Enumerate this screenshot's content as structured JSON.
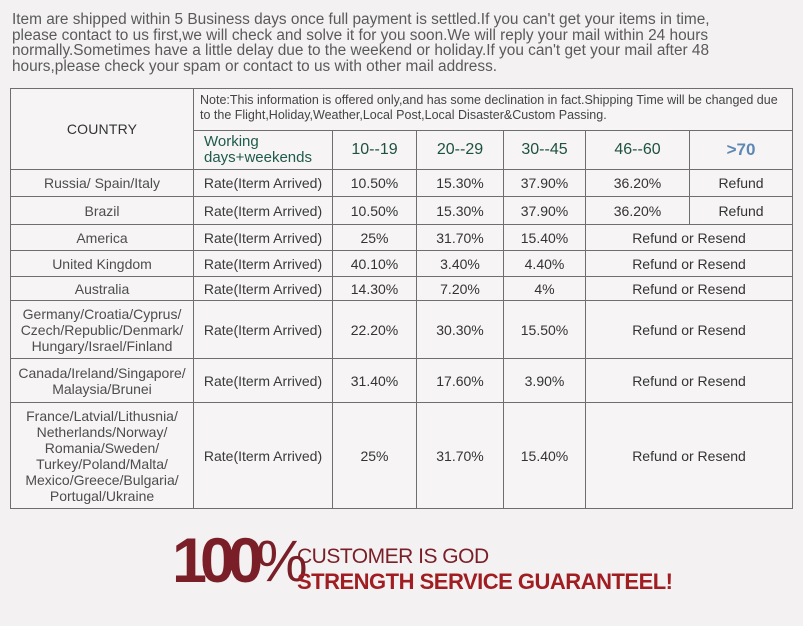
{
  "notice": {
    "line1": "Item are shipped within 5 Business days once full payment is settled.If you can't get your items in time,",
    "line2": "please contact to us first,we will check and solve it for you soon.We will reply your mail within 24 hours",
    "line3": "normally.Sometimes have a little delay due to the weekend or holiday.If you can't get your mail after 48",
    "line4": "hours,please check your spam or contact to us with other mail address."
  },
  "table": {
    "country_header": "COUNTRY",
    "note": "Note:This information is offered only,and has some declination in fact.Shipping Time will be changed due to the Flight,Holiday,Weather,Local Post,Local Disaster&Custom Passing.",
    "working_days_line1": "Working",
    "working_days_line2": "days+weekends",
    "day_ranges": [
      "10--19",
      "20--29",
      "30--45",
      "46--60",
      ">70"
    ],
    "rows": [
      {
        "country": "Russia/ Spain/Italy",
        "rate": "Rate(Iterm Arrived)",
        "v1": "10.50%",
        "v2": "15.30%",
        "v3": "37.90%",
        "v4": "36.20%",
        "v5": "Refund"
      },
      {
        "country": "Brazil",
        "rate": "Rate(Iterm Arrived)",
        "v1": "10.50%",
        "v2": "15.30%",
        "v3": "37.90%",
        "v4": "36.20%",
        "v5": "Refund"
      },
      {
        "country": "America",
        "rate": "Rate(Iterm Arrived)",
        "v1": "25%",
        "v2": "31.70%",
        "v3": "15.40%",
        "merged": "Refund or Resend"
      },
      {
        "country": "United Kingdom",
        "rate": "Rate(Iterm Arrived)",
        "v1": "40.10%",
        "v2": "3.40%",
        "v3": "4.40%",
        "merged": "Refund or Resend"
      },
      {
        "country": "Australia",
        "rate": "Rate(Iterm Arrived)",
        "v1": "14.30%",
        "v2": "7.20%",
        "v3": "4%",
        "merged": "Refund or Resend"
      },
      {
        "country_lines": [
          "Germany/Croatia/Cyprus/",
          "Czech/Republic/Denmark/",
          "Hungary/Israel/Finland"
        ],
        "rate": "Rate(Iterm Arrived)",
        "v1": "22.20%",
        "v2": "30.30%",
        "v3": "15.50%",
        "merged": "Refund or Resend"
      },
      {
        "country_lines": [
          "Canada/Ireland/Singapore/",
          "Malaysia/Brunei"
        ],
        "rate": "Rate(Iterm Arrived)",
        "v1": "31.40%",
        "v2": "17.60%",
        "v3": "3.90%",
        "merged": "Refund or Resend"
      },
      {
        "country_lines": [
          "France/Latvial/Lithusnia/",
          "Netherlands/Norway/",
          "Romania/Sweden/",
          "Turkey/Poland/Malta/",
          "Mexico/Greece/Bulgaria/",
          "Portugal/Ukraine"
        ],
        "rate": "Rate(Iterm Arrived)",
        "v1": "25%",
        "v2": "31.70%",
        "v3": "15.40%",
        "merged": "Refund or Resend"
      }
    ]
  },
  "slogan": {
    "big_number": "100",
    "percent": "%",
    "line1": "CUSTOMER IS GOD",
    "line2": "STRENGTH SERVICE GUARANTEEL!"
  },
  "colors": {
    "slogan_dark": "#7a1f28",
    "slogan_red": "#a01e22",
    "header_green": "#1d5140",
    "header_blue": "#5d88b3"
  }
}
